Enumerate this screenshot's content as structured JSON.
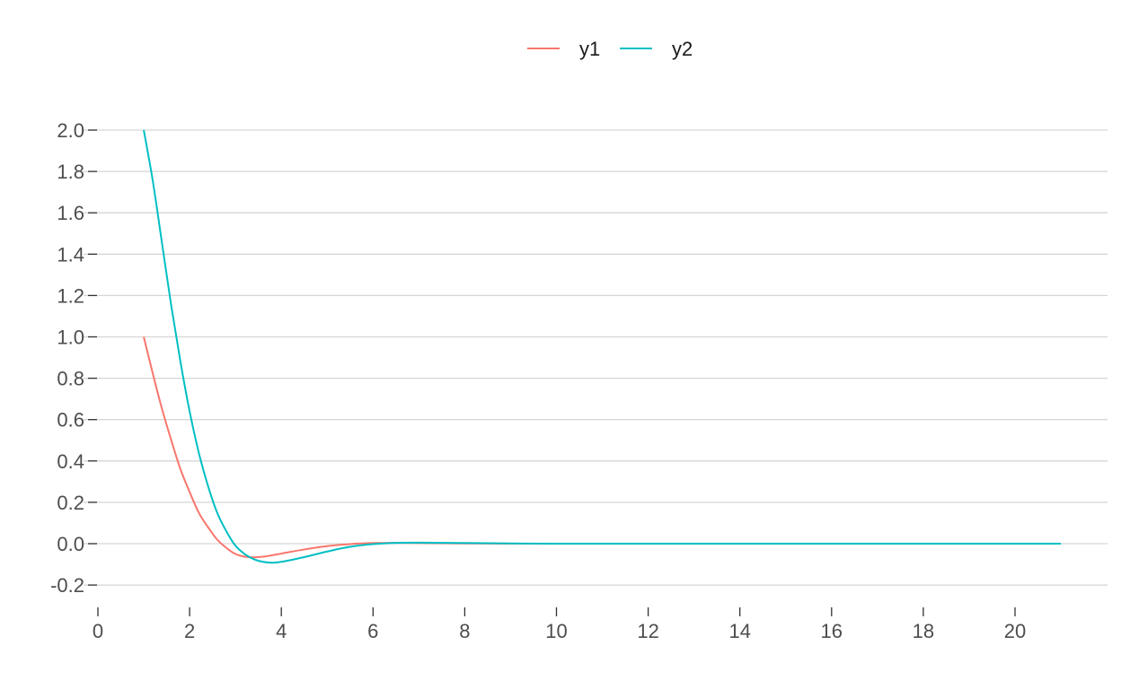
{
  "chart_data": {
    "type": "line",
    "title": "",
    "xlabel": "",
    "ylabel": "",
    "xlim": [
      0,
      21
    ],
    "ylim": [
      -0.2,
      2.0
    ],
    "x_ticks": [
      0,
      2,
      4,
      6,
      8,
      10,
      12,
      14,
      16,
      18,
      20
    ],
    "y_ticks": [
      -0.2,
      0.0,
      0.2,
      0.4,
      0.6,
      0.8,
      1.0,
      1.2,
      1.4,
      1.6,
      1.8,
      2.0
    ],
    "x_tick_labels": [
      "0",
      "2",
      "4",
      "6",
      "8",
      "10",
      "12",
      "14",
      "16",
      "18",
      "20"
    ],
    "y_tick_labels": [
      "-0.2",
      "0.0",
      "0.2",
      "0.4",
      "0.6",
      "0.8",
      "1.0",
      "1.2",
      "1.4",
      "1.6",
      "1.8",
      "2.0"
    ],
    "grid": "horizontal major lines",
    "legend": {
      "position": "top",
      "entries": [
        "y1",
        "y2"
      ]
    },
    "series": [
      {
        "name": "y1",
        "color": "#F8766D",
        "x": [
          1,
          1.2,
          1.4,
          1.6,
          1.8,
          2,
          2.2,
          2.4,
          2.6,
          2.8,
          3,
          3.2,
          3.4,
          3.6,
          3.8,
          4,
          4.5,
          5,
          5.5,
          6,
          6.5,
          7,
          8,
          9,
          10,
          12,
          14,
          16,
          18,
          20,
          21
        ],
        "y": [
          1.0,
          0.82,
          0.65,
          0.5,
          0.36,
          0.25,
          0.15,
          0.08,
          0.02,
          -0.02,
          -0.05,
          -0.063,
          -0.066,
          -0.063,
          -0.056,
          -0.048,
          -0.028,
          -0.012,
          -0.002,
          0.003,
          0.004,
          0.003,
          0.001,
          0.0,
          0.0,
          0.0,
          0.0,
          0.0,
          0.0,
          0.0,
          0.0
        ]
      },
      {
        "name": "y2",
        "color": "#00BFC4",
        "x": [
          1,
          1.2,
          1.4,
          1.6,
          1.8,
          2,
          2.2,
          2.4,
          2.6,
          2.8,
          3,
          3.2,
          3.4,
          3.6,
          3.8,
          4,
          4.5,
          5,
          5.5,
          6,
          6.5,
          7,
          8,
          9,
          10,
          12,
          14,
          16,
          18,
          20,
          21
        ],
        "y": [
          2.0,
          1.75,
          1.45,
          1.15,
          0.88,
          0.64,
          0.44,
          0.28,
          0.15,
          0.06,
          -0.01,
          -0.05,
          -0.075,
          -0.088,
          -0.092,
          -0.088,
          -0.065,
          -0.038,
          -0.015,
          -0.002,
          0.004,
          0.005,
          0.003,
          0.001,
          0.0,
          0.0,
          0.0,
          0.0,
          0.0,
          0.0,
          0.0
        ]
      }
    ]
  }
}
